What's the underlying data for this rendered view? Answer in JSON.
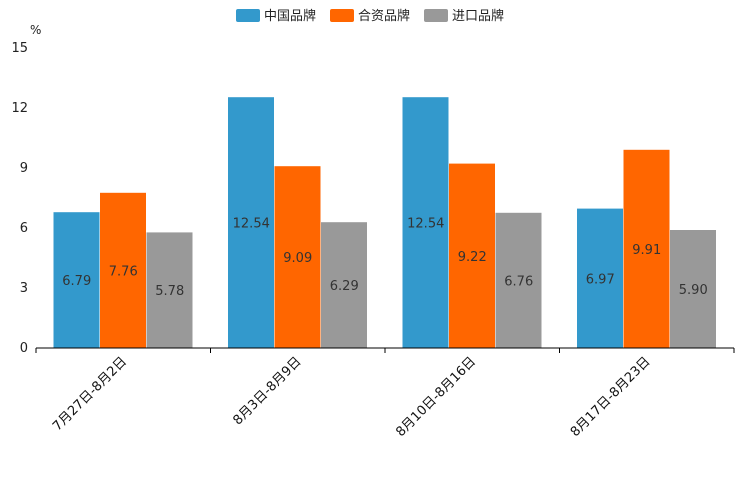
{
  "chart_data": {
    "type": "bar",
    "unit": "%",
    "categories": [
      "7月27日-8月2日",
      "8月3日-8月9日",
      "8月10日-8月16日",
      "8月17日-8月23日"
    ],
    "series": [
      {
        "name": "中国品牌",
        "color": "#3399CC",
        "values": [
          6.79,
          12.54,
          12.54,
          6.97
        ],
        "labels": [
          "6.79",
          "12.54",
          "12.54",
          "6.97"
        ]
      },
      {
        "name": "合资品牌",
        "color": "#FF6600",
        "values": [
          7.76,
          9.09,
          9.22,
          9.91
        ],
        "labels": [
          "7.76",
          "9.09",
          "9.22",
          "9.91"
        ]
      },
      {
        "name": "进口品牌",
        "color": "#999999",
        "values": [
          5.78,
          6.29,
          6.76,
          5.9
        ],
        "labels": [
          "5.78",
          "6.29",
          "6.76",
          "5.90"
        ]
      }
    ],
    "yticks": [
      "0",
      "3",
      "6",
      "9",
      "12",
      "15"
    ],
    "ylim": [
      0,
      15
    ],
    "legend_position": "top-center",
    "grid": false
  }
}
